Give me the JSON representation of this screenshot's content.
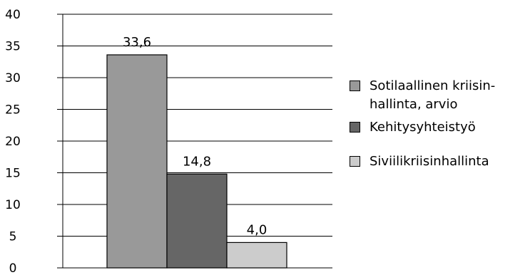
{
  "chart_data": {
    "type": "bar",
    "categories": [
      "Sotilaallinen kriisinhallinta, arvio",
      "Kehitysyhteistyö",
      "Siviilikriisinhallinta"
    ],
    "values": [
      33.6,
      14.8,
      4.0
    ],
    "value_labels": [
      "33,6",
      "14,8",
      "4,0"
    ],
    "colors": [
      "#999999",
      "#666666",
      "#cccccc"
    ],
    "ylim": [
      0,
      40
    ],
    "yticks": [
      0,
      5,
      10,
      15,
      20,
      25,
      30,
      35,
      40
    ],
    "grid": true,
    "legend_position": "right",
    "title": "",
    "xlabel": "",
    "ylabel": ""
  },
  "legend": [
    {
      "line1": "Sotilaallinen kriisin-",
      "line2": "hallinta, arvio"
    },
    {
      "line1": "Kehitysyhteistyö",
      "line2": ""
    },
    {
      "line1": "Siviilikriisinhallinta",
      "line2": ""
    }
  ]
}
